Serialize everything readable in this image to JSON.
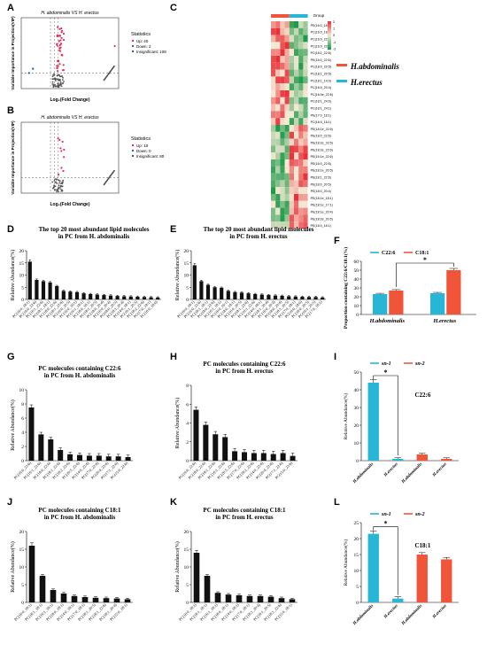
{
  "panel_letters": [
    "A",
    "B",
    "C",
    "D",
    "E",
    "F",
    "G",
    "H",
    "I",
    "J",
    "K",
    "L"
  ],
  "colors": {
    "bar_black": "#111111",
    "habdominalis": "#f0553a",
    "herectus": "#27b6d6",
    "up": "#e0315a",
    "heat_high": "#e8323a",
    "heat_mid": "#f7e9d4",
    "heat_low": "#1e9a48"
  },
  "volcano": [
    {
      "panel": "A",
      "title": "H. abdominalis VS H. erectus",
      "xlabel": "Log₂(Fold Change)",
      "ylabel": "Variable Importance in Projection(VIP)",
      "legend_title": "Statistics",
      "legend": [
        "Up: 40",
        "Down: 2",
        "Insignificant: 108"
      ]
    },
    {
      "panel": "B",
      "title": "H. abdominalis VS H. erectus",
      "xlabel": "Log₂(Fold Change)",
      "ylabel": "Variable Importance in Projection(VIP)",
      "legend_title": "Statistics",
      "legend": [
        "Up: 10",
        "Down: 0",
        "Insignificant: 80"
      ]
    }
  ],
  "heatmap": {
    "panel": "C",
    "group_label": "Group",
    "scale_ticks": [
      "2",
      "1",
      "0",
      "-1",
      "-2"
    ],
    "groups": [
      "H.abdominalis",
      "H.erectus"
    ],
    "rows": [
      "PE(16:0_18:1)",
      "PC(16:0_18:1)",
      "PC(16:0_22:6)",
      "PC(16:0_20:5)",
      "PC(18:1_22:6)",
      "PE(16:0_22:6)",
      "PC(18:0_20:5)",
      "PC(18:1_20:5)",
      "PC(18:1_14:0)",
      "PC(16:0_20:4)",
      "PC(16:0e_22:6)",
      "PC(18:1_24:0)",
      "PC(18:1_24:1)",
      "PE(17:0_18:1)",
      "PC(16:0_16:1)",
      "PE(18:1e_22:6)",
      "PE(18:0_22:6)",
      "PE(18:2e_22:5)",
      "PE(18:2e_22:6)",
      "PE(16:1e_22:6)",
      "PE(16:0_22:6)",
      "PE(18:1e_20:5)",
      "PE(18:1_22:6)",
      "PE(18:0_20:5)",
      "PE(18:0_20:4)",
      "PE(18:1e_18:1)",
      "PE(18:1e_17:1)",
      "PE(18:1e_20:4)",
      "PE(18:2e_20:5)",
      "PE(16:0_18:1)"
    ]
  },
  "chart_data": [
    {
      "panel": "D",
      "type": "bar",
      "title": "The top 20 most abundant lipid molecules in PC from H. abdominalis",
      "ylabel": "Relative Abundance(%)",
      "ylim": [
        0,
        20
      ],
      "yticks": [
        0,
        5,
        10,
        15,
        20
      ],
      "categories": [
        "PC(16:0_18:1)",
        "PC(16:0_22:6)",
        "PC(16:1_22:6)",
        "PC(18:1_18:1)",
        "PC(18:0_22:6)",
        "PC(18:1_22:6)",
        "PC(16:0_20:5)",
        "PC(16:0_16:1)",
        "PC(16:1_18:1)",
        "PC(18:0_18:1)",
        "PC(18:1_20:5)",
        "PC(18:0_20:4)",
        "PC(16:0_20:4)",
        "PC(18:0_20:5)",
        "PC(18:1_20:4)",
        "PC(14:0_18:1)",
        "PC(16:1_20:5)",
        "PC(18:2_22:6)",
        "PC(17:0_18:1)",
        "PC(16:0_18:0)"
      ],
      "values": [
        15.5,
        8,
        7.5,
        7,
        5.5,
        3.5,
        3.2,
        3.0,
        2.5,
        2.2,
        2.0,
        1.8,
        1.6,
        1.4,
        1.3,
        1.2,
        1.1,
        1.0,
        0.9,
        0.8
      ]
    },
    {
      "panel": "E",
      "type": "bar",
      "title": "The top 20 most abundant lipid molecules in PC from H. erectus",
      "ylabel": "Relative Abundance(%)",
      "ylim": [
        0,
        20
      ],
      "yticks": [
        0,
        5,
        10,
        15,
        20
      ],
      "categories": [
        "PC(16:0_18:1)",
        "PC(16:0_22:6)",
        "PC(18:1_18:1)",
        "PC(18:0_22:6)",
        "PC(16:1_18:1)",
        "PC(16:0_16:1)",
        "PC(18:0_18:1)",
        "PC(16:0_20:5)",
        "PC(18:1_22:6)",
        "PC(16:1_22:6)",
        "PC(14:0_18:1)",
        "PC(18:1_20:4)",
        "PC(16:0_20:4)",
        "PC(18:0_20:4)",
        "PC(18:1_20:5)",
        "PC(17:0_18:1)",
        "PC(16:0_18:0)",
        "PC(18:0_20:5)",
        "PC(16:1_20:5)",
        "PC(17:0_18:1)"
      ],
      "values": [
        14,
        7.5,
        6,
        5,
        4.8,
        3.5,
        3,
        2.8,
        2.5,
        2.2,
        2.0,
        1.8,
        1.6,
        1.5,
        1.3,
        1.2,
        1.1,
        1.0,
        1.0,
        0.8
      ]
    },
    {
      "panel": "F",
      "type": "bar",
      "ylabel": "Proportion containing C22:6/C18:1(%)",
      "ylim": [
        0,
        60
      ],
      "yticks": [
        0,
        10,
        20,
        30,
        40,
        50,
        60
      ],
      "categories": [
        "H.abdominalis",
        "H.erectus"
      ],
      "series": [
        {
          "name": "C22:6",
          "values": [
            23,
            24
          ]
        },
        {
          "name": "C18:1",
          "values": [
            27,
            50
          ]
        }
      ],
      "annotations": [
        "*"
      ]
    },
    {
      "panel": "G",
      "type": "bar",
      "title": "PC molecules containing C22:6 in PC from H. abdominalis",
      "ylabel": "Relative Abundance(%)",
      "ylim": [
        0,
        10
      ],
      "yticks": [
        0,
        2,
        4,
        6,
        8,
        10
      ],
      "categories": [
        "PC(16:0_22:6)",
        "PC(16:1_22:6)",
        "PC(18:0_22:6)",
        "PC(18:1_22:6)",
        "PC(18:2_22:6)",
        "PC(20:5_22:6)",
        "PC(14:0_22:6)",
        "PC(17:0_22:6)",
        "PC(20:4_22:6)",
        "PC(17:1_22:6)",
        "PC(15:0_22:6)"
      ],
      "values": [
        7.5,
        3.7,
        3.0,
        1.5,
        0.9,
        0.8,
        0.7,
        0.7,
        0.6,
        0.6,
        0.5
      ]
    },
    {
      "panel": "H",
      "type": "bar",
      "title": "PC molecules containing C22:6 in PC from H. erectus",
      "ylabel": "Relative Abundance(%)",
      "ylim": [
        0,
        8
      ],
      "yticks": [
        0,
        2,
        4,
        6,
        8
      ],
      "categories": [
        "PC(16:0_22:6)",
        "PC(18:0_22:6)",
        "PC(18:1_22:6)",
        "PC(16:1_22:6)",
        "PC(20:5_22:6)",
        "PC(17:0_22:6)",
        "PC(18:2_22:6)",
        "PC(14:0_22:6)",
        "PC(20:4_22:6)",
        "PC(17:1_22:6)",
        "PC(15:0_22:6)"
      ],
      "values": [
        5.4,
        3.8,
        2.8,
        2.5,
        1.0,
        0.9,
        0.8,
        0.8,
        0.7,
        0.8,
        0.5
      ]
    },
    {
      "panel": "I",
      "type": "bar",
      "ylabel": "Relative Abundance(%)",
      "ylim": [
        0,
        50
      ],
      "yticks": [
        0,
        10,
        20,
        30,
        40,
        50
      ],
      "label": "C22:6",
      "categories": [
        "H.abdominalis",
        "H.erectus",
        "H.abdominalis",
        "H.erectus"
      ],
      "series": [
        {
          "name": "sn-1",
          "values": [
            44,
            1,
            null,
            null
          ]
        },
        {
          "name": "sn-2",
          "values": [
            null,
            null,
            3.5,
            1
          ]
        }
      ],
      "annotations": [
        "*"
      ]
    },
    {
      "panel": "J",
      "type": "bar",
      "title": "PC molecules containing C18:1 in PC from H. abdominalis",
      "ylabel": "Relative Abundance(%)",
      "ylim": [
        0,
        20
      ],
      "yticks": [
        0,
        5,
        10,
        15,
        20
      ],
      "categories": [
        "PC(16:0_18:1)",
        "PC(18:1_18:1)",
        "PC(16:1_18:1)",
        "PC(18:0_18:1)",
        "PC(14:0_18:1)",
        "PC(17:0_18:1)",
        "PC(18:1_20:5)",
        "PC(18:1_22:6)",
        "PC(18:1_20:4)",
        "PC(15:0_18:1)"
      ],
      "values": [
        16,
        7.5,
        3.5,
        2.5,
        1.8,
        1.5,
        1.3,
        1.2,
        1.1,
        0.9
      ]
    },
    {
      "panel": "K",
      "type": "bar",
      "title": "PC molecules containing C18:1 in PC from H. erectus",
      "ylabel": "Relative Abundance(%)",
      "ylim": [
        0,
        20
      ],
      "yticks": [
        0,
        5,
        10,
        15,
        20
      ],
      "categories": [
        "PC(16:0_18:1)",
        "PC(18:1_18:1)",
        "PC(16:1_18:1)",
        "PC(18:0_18:1)",
        "PC(14:0_18:1)",
        "PC(17:0_18:1)",
        "PC(18:1_20:4)",
        "PC(18:1_20:5)",
        "PC(18:1_22:6)",
        "PC(15:0_18:1)"
      ],
      "values": [
        14,
        7.5,
        2.7,
        2.2,
        2.0,
        1.8,
        1.8,
        1.6,
        1.2,
        0.9
      ]
    },
    {
      "panel": "L",
      "type": "bar",
      "ylabel": "Relative Abundance(%)",
      "ylim": [
        0,
        25
      ],
      "yticks": [
        0,
        5,
        10,
        15,
        20,
        25
      ],
      "label": "C18:1",
      "categories": [
        "H.abdominalis",
        "H.erectus",
        "H.abdominalis",
        "H.erectus"
      ],
      "series": [
        {
          "name": "sn-1",
          "values": [
            21.5,
            1.2,
            null,
            null
          ]
        },
        {
          "name": "sn-2",
          "values": [
            null,
            null,
            15,
            13.5
          ]
        }
      ],
      "annotations": [
        "*"
      ]
    }
  ]
}
